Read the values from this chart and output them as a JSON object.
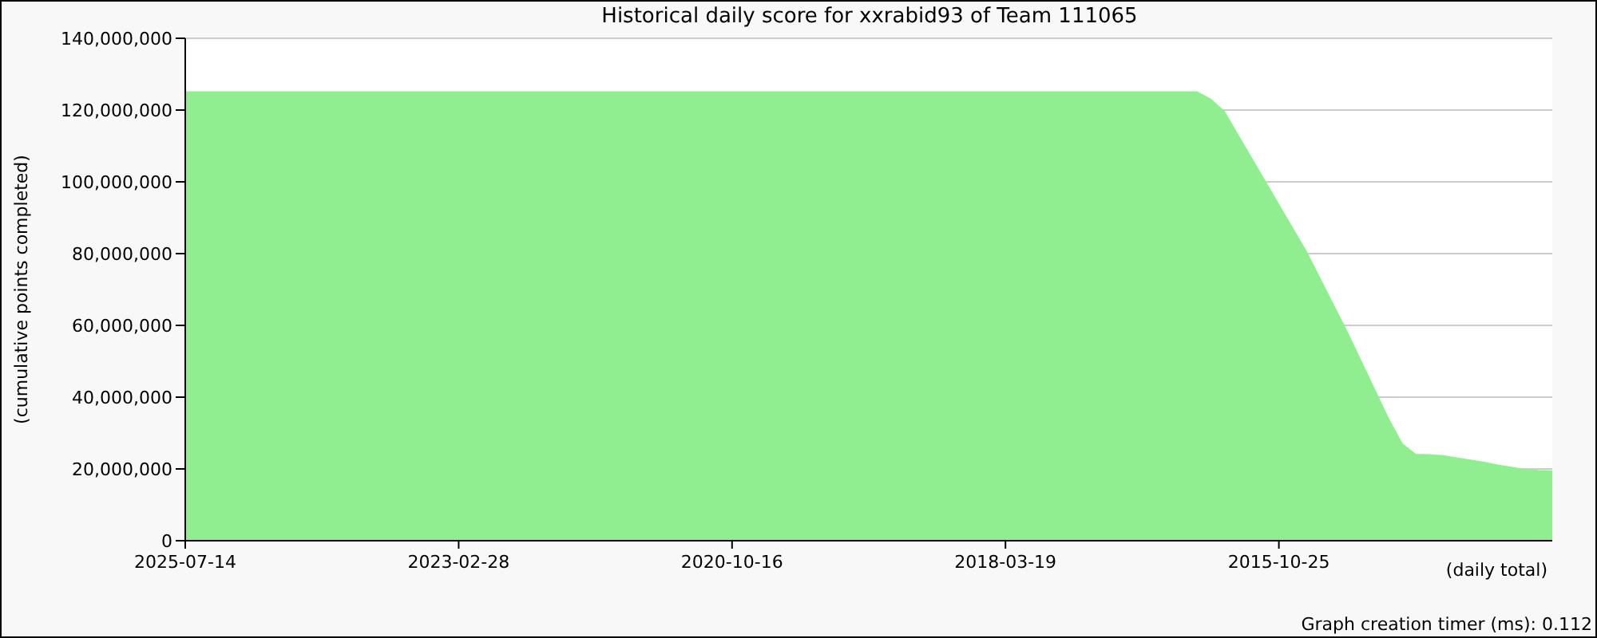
{
  "chart_data": {
    "type": "area",
    "title": "Historical daily score for xxrabid93 of Team 111065",
    "xlabel": "(daily total)",
    "ylabel": "(cumulative points completed)",
    "annotations": [
      "Graph creation timer (ms): 0.112"
    ],
    "categories": [
      "2025-07-14",
      null,
      null,
      null,
      null,
      null,
      null,
      null,
      null,
      null,
      null,
      null,
      null,
      null,
      null,
      null,
      null,
      null,
      null,
      null,
      "2023-02-28",
      null,
      null,
      null,
      null,
      null,
      null,
      null,
      null,
      null,
      null,
      null,
      null,
      null,
      null,
      null,
      null,
      null,
      null,
      null,
      "2020-10-16",
      null,
      null,
      null,
      null,
      null,
      null,
      null,
      null,
      null,
      null,
      null,
      null,
      null,
      null,
      null,
      null,
      null,
      null,
      null,
      "2018-03-19",
      null,
      null,
      null,
      null,
      null,
      null,
      null,
      null,
      null,
      null,
      null,
      null,
      null,
      null,
      null,
      null,
      null,
      null,
      null,
      "2015-10-25",
      null,
      null,
      null,
      null,
      null,
      null,
      null,
      null,
      null,
      null,
      null,
      null,
      null,
      null,
      null,
      null,
      null,
      null,
      null,
      null
    ],
    "color": "#90ee90",
    "values": [
      125000000,
      125000000,
      125000000,
      125000000,
      125000000,
      125000000,
      125000000,
      125000000,
      125000000,
      125000000,
      125000000,
      125000000,
      125000000,
      125000000,
      125000000,
      125000000,
      125000000,
      125000000,
      125000000,
      125000000,
      125000000,
      125000000,
      125000000,
      125000000,
      125000000,
      125000000,
      125000000,
      125000000,
      125000000,
      125000000,
      125000000,
      125000000,
      125000000,
      125000000,
      125000000,
      125000000,
      125000000,
      125000000,
      125000000,
      125000000,
      125000000,
      125000000,
      125000000,
      125000000,
      125000000,
      125000000,
      125000000,
      125000000,
      125000000,
      125000000,
      125000000,
      125000000,
      125000000,
      125000000,
      125000000,
      125000000,
      125000000,
      125000000,
      125000000,
      125000000,
      125000000,
      125000000,
      125000000,
      125000000,
      125000000,
      125000000,
      125000000,
      125000000,
      125000000,
      125000000,
      125000000,
      125000000,
      125000000,
      125000000,
      125000000,
      123000000,
      119500000,
      113000000,
      106500000,
      100000000,
      93500000,
      87000000,
      80500000,
      73000000,
      65500000,
      58000000,
      50000000,
      42000000,
      34000000,
      27000000,
      24000000,
      23900000,
      23600000,
      23000000,
      22400000,
      21800000,
      21000000,
      20400000,
      19700000,
      19500000,
      19400000
    ],
    "ylim": [
      0,
      140000000
    ],
    "yticks": [
      {
        "value": 0,
        "label": "0"
      },
      {
        "value": 20000000,
        "label": "20,000,000"
      },
      {
        "value": 40000000,
        "label": "40,000,000"
      },
      {
        "value": 60000000,
        "label": "60,000,000"
      },
      {
        "value": 80000000,
        "label": "80,000,000"
      },
      {
        "value": 100000000,
        "label": "100,000,000"
      },
      {
        "value": 120000000,
        "label": "120,000,000"
      },
      {
        "value": 140000000,
        "label": "140,000,000"
      }
    ],
    "grid": "y"
  }
}
